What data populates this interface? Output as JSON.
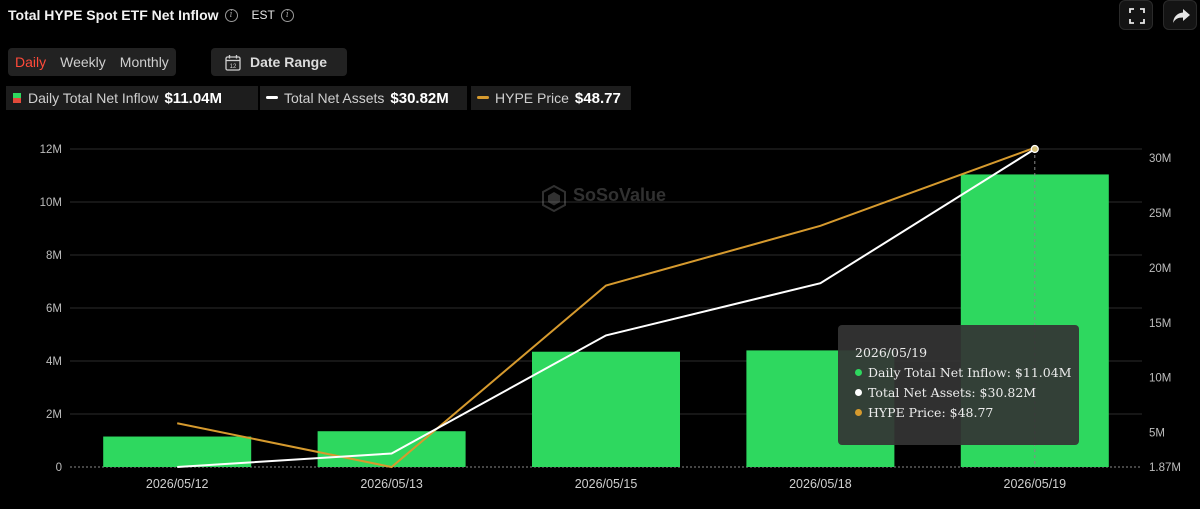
{
  "header": {
    "title": "Total HYPE Spot ETF Net Inflow",
    "timezone": "EST"
  },
  "period_tabs": [
    {
      "label": "Daily",
      "active": true
    },
    {
      "label": "Weekly",
      "active": false
    },
    {
      "label": "Monthly",
      "active": false
    }
  ],
  "date_range": {
    "label": "Date Range",
    "icon_day": "12"
  },
  "legend": [
    {
      "name": "Daily Total Net Inflow",
      "value": "$11.04M"
    },
    {
      "name": "Total Net Assets",
      "value": "$30.82M"
    },
    {
      "name": "HYPE Price",
      "value": "$48.77"
    }
  ],
  "watermark": "SoSoValue",
  "tooltip": {
    "date": "2026/05/19",
    "rows": [
      "Daily Total Net Inflow: $11.04M",
      "Total Net Assets: $30.82M",
      "HYPE Price: $48.77"
    ]
  },
  "colors": {
    "inflow": "#2ed85f",
    "assets": "#ffffff",
    "price": "#d69a2e",
    "active_tab": "#ff4a3a"
  },
  "chart_data": {
    "type": "bar",
    "categories": [
      "2026/05/12",
      "2026/05/13",
      "2026/05/15",
      "2026/05/18",
      "2026/05/19"
    ],
    "series": [
      {
        "name": "Daily Total Net Inflow",
        "type": "bar",
        "axis": "left",
        "values": [
          1.15,
          1.35,
          4.35,
          4.4,
          11.04
        ]
      },
      {
        "name": "Total Net Assets",
        "type": "line",
        "axis": "right",
        "values": [
          1.87,
          3.1,
          13.85,
          18.6,
          30.82
        ]
      },
      {
        "name": "HYPE Price",
        "type": "line",
        "axis": "left-scaled",
        "values": [
          1.65,
          0.0,
          6.85,
          9.1,
          12.05
        ]
      }
    ],
    "y_left": {
      "ticks": [
        "0",
        "2M",
        "4M",
        "6M",
        "8M",
        "10M",
        "12M"
      ],
      "range": [
        0,
        12
      ]
    },
    "y_right": {
      "ticks": [
        "1.87M",
        "5M",
        "10M",
        "15M",
        "20M",
        "25M",
        "30M"
      ],
      "range": [
        1.87,
        30.82
      ]
    },
    "grid": true
  }
}
